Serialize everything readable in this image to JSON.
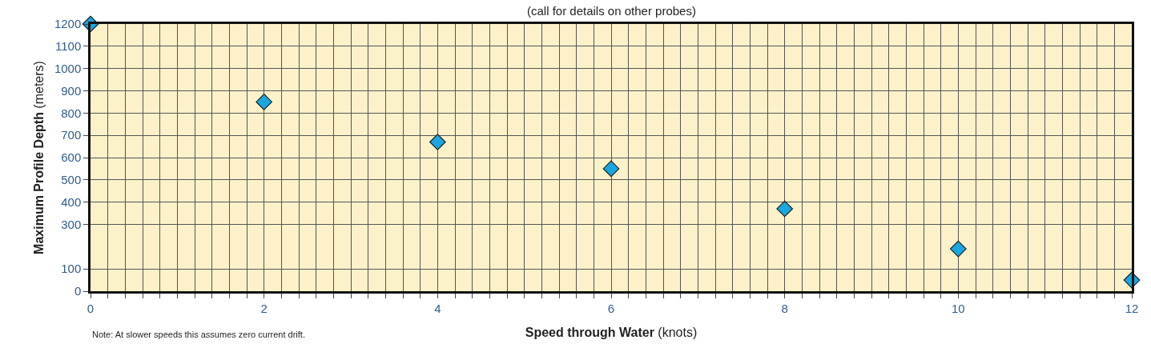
{
  "chart_data": {
    "type": "scatter",
    "subtitle": "(call for details on other probes)",
    "xlabel": "Speed through Water (knots)",
    "ylabel": "Maximum Profile Depth (meters)",
    "annotations": [
      "Note: At slower speeds this assumes zero current drift."
    ],
    "x": [
      0,
      2,
      4,
      6,
      8,
      10,
      12
    ],
    "series": [
      {
        "color": "#1aa6e0",
        "values": [
          1200,
          850,
          670,
          550,
          370,
          190,
          50
        ]
      }
    ],
    "marker": "diamond",
    "grid": true,
    "xlim": [
      0,
      12
    ],
    "xticks": [
      0,
      {
        "value": 0.2,
        "label": null
      },
      {
        "value": 0.4,
        "label": null
      },
      {
        "value": 0.6,
        "label": null
      },
      {
        "value": 0.8,
        "label": null
      },
      {
        "value": 1,
        "label": null
      },
      {
        "value": 1.2,
        "label": null
      },
      {
        "value": 1.4,
        "label": null
      },
      {
        "value": 1.6,
        "label": null
      },
      {
        "value": 1.8,
        "label": null
      },
      2,
      {
        "value": 2.2,
        "label": null
      },
      {
        "value": 2.4,
        "label": null
      },
      {
        "value": 2.6,
        "label": null
      },
      {
        "value": 2.8,
        "label": null
      },
      {
        "value": 3,
        "label": null
      },
      {
        "value": 3.2,
        "label": null
      },
      {
        "value": 3.4,
        "label": null
      },
      {
        "value": 3.6,
        "label": null
      },
      {
        "value": 3.8,
        "label": null
      },
      4,
      {
        "value": 4.2,
        "label": null
      },
      {
        "value": 4.4,
        "label": null
      },
      {
        "value": 4.6,
        "label": null
      },
      {
        "value": 4.8,
        "label": null
      },
      {
        "value": 5,
        "label": null
      },
      {
        "value": 5.2,
        "label": null
      },
      {
        "value": 5.4,
        "label": null
      },
      {
        "value": 5.6,
        "label": null
      },
      {
        "value": 5.8,
        "label": null
      },
      6,
      {
        "value": 6.2,
        "label": null
      },
      {
        "value": 6.4,
        "label": null
      },
      {
        "value": 6.6,
        "label": null
      },
      {
        "value": 6.8,
        "label": null
      },
      {
        "value": 7,
        "label": null
      },
      {
        "value": 7.2,
        "label": null
      },
      {
        "value": 7.4,
        "label": null
      },
      {
        "value": 7.6,
        "label": null
      },
      {
        "value": 7.8,
        "label": null
      },
      8,
      {
        "value": 8.2,
        "label": null
      },
      {
        "value": 8.4,
        "label": null
      },
      {
        "value": 8.6,
        "label": null
      },
      {
        "value": 8.8,
        "label": null
      },
      {
        "value": 9,
        "label": null
      },
      {
        "value": 9.2,
        "label": null
      },
      {
        "value": 9.4,
        "label": null
      },
      {
        "value": 9.6,
        "label": null
      },
      {
        "value": 9.8,
        "label": null
      },
      10,
      {
        "value": 10.2,
        "label": null
      },
      {
        "value": 10.4,
        "label": null
      },
      {
        "value": 10.6,
        "label": null
      },
      {
        "value": 10.8,
        "label": null
      },
      {
        "value": 11,
        "label": null
      },
      {
        "value": 11.2,
        "label": null
      },
      {
        "value": 11.4,
        "label": null
      },
      {
        "value": 11.6,
        "label": null
      },
      {
        "value": 11.8,
        "label": null
      },
      12
    ],
    "ylim": [
      0,
      1200
    ],
    "yticks": [
      0,
      100,
      300,
      400,
      500,
      600,
      700,
      800,
      900,
      1000,
      1100,
      1200
    ]
  }
}
